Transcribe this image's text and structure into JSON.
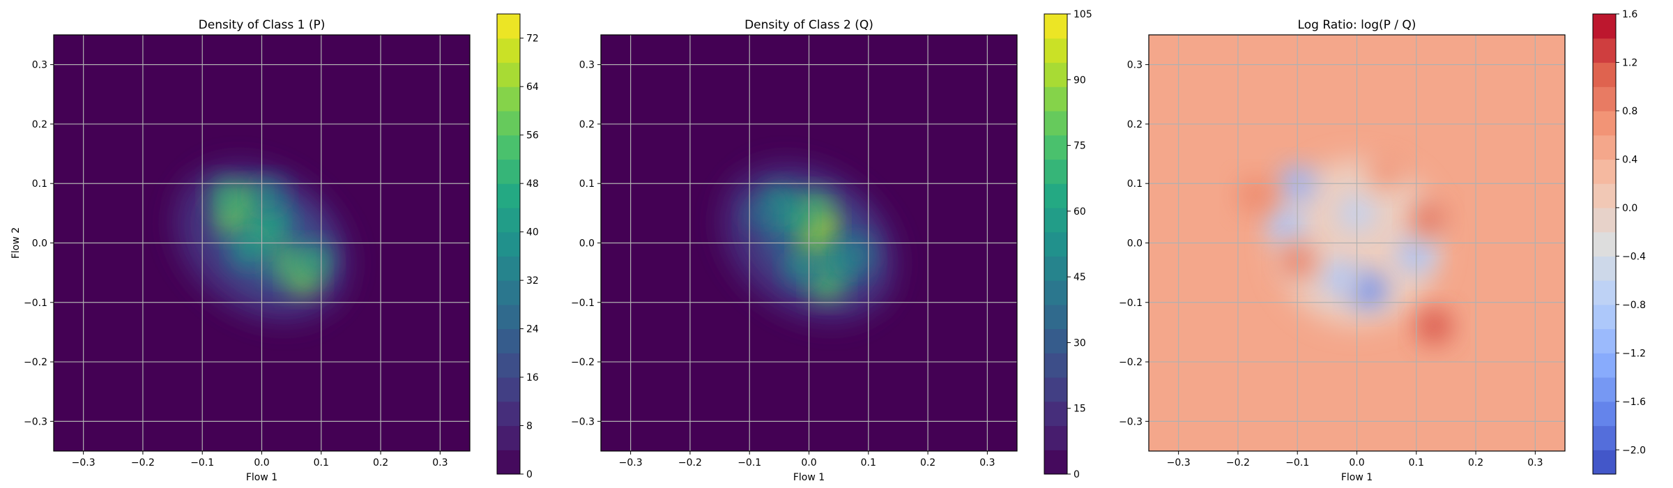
{
  "chart_data": [
    {
      "type": "heatmap",
      "title": "Density of Class 1 (P)",
      "xlabel": "Flow 1",
      "ylabel": "Flow 2",
      "xlim": [
        -0.35,
        0.35
      ],
      "ylim": [
        -0.35,
        0.35
      ],
      "xticks": [
        "−0.3",
        "−0.2",
        "−0.1",
        "0.0",
        "0.1",
        "0.2",
        "0.3"
      ],
      "yticks": [
        "0.3",
        "0.2",
        "0.1",
        "0.0",
        "−0.1",
        "−0.2",
        "−0.3"
      ],
      "grid": true,
      "colormap": "viridis",
      "colorbar": {
        "min": 0,
        "max": 76,
        "ticks": [
          "0",
          "8",
          "16",
          "24",
          "32",
          "40",
          "48",
          "56",
          "64",
          "72"
        ]
      },
      "blobs": [
        {
          "x": -0.05,
          "y": 0.04,
          "value": 60
        },
        {
          "x": -0.03,
          "y": 0.07,
          "value": 58
        },
        {
          "x": -0.06,
          "y": 0.08,
          "value": 50
        },
        {
          "x": 0.0,
          "y": 0.02,
          "value": 52
        },
        {
          "x": 0.02,
          "y": 0.03,
          "value": 45
        },
        {
          "x": 0.07,
          "y": -0.06,
          "value": 62
        },
        {
          "x": 0.04,
          "y": -0.03,
          "value": 55
        },
        {
          "x": 0.09,
          "y": -0.03,
          "value": 48
        },
        {
          "x": -0.02,
          "y": -0.01,
          "value": 44
        },
        {
          "x": 0.01,
          "y": 0.08,
          "value": 40
        }
      ]
    },
    {
      "type": "heatmap",
      "title": "Density of Class 2 (Q)",
      "xlabel": "Flow 1",
      "ylabel": "",
      "xlim": [
        -0.35,
        0.35
      ],
      "ylim": [
        -0.35,
        0.35
      ],
      "xticks": [
        "−0.3",
        "−0.2",
        "−0.1",
        "0.0",
        "0.1",
        "0.2",
        "0.3"
      ],
      "yticks": [
        "0.3",
        "0.2",
        "0.1",
        "0.0",
        "−0.1",
        "−0.2",
        "−0.3"
      ],
      "grid": true,
      "colormap": "viridis",
      "colorbar": {
        "min": 0,
        "max": 105,
        "ticks": [
          "0",
          "15",
          "30",
          "45",
          "60",
          "75",
          "90",
          "105"
        ]
      },
      "blobs": [
        {
          "x": 0.02,
          "y": 0.03,
          "value": 95
        },
        {
          "x": 0.01,
          "y": 0.0,
          "value": 88
        },
        {
          "x": 0.03,
          "y": -0.07,
          "value": 80
        },
        {
          "x": 0.01,
          "y": 0.06,
          "value": 75
        },
        {
          "x": -0.03,
          "y": 0.04,
          "value": 65
        },
        {
          "x": -0.05,
          "y": 0.07,
          "value": 60
        },
        {
          "x": 0.05,
          "y": -0.03,
          "value": 62
        },
        {
          "x": -0.01,
          "y": -0.04,
          "value": 55
        },
        {
          "x": 0.08,
          "y": -0.02,
          "value": 45
        },
        {
          "x": -0.08,
          "y": 0.05,
          "value": 40
        }
      ]
    },
    {
      "type": "heatmap",
      "title": "Log Ratio: log(P / Q)",
      "xlabel": "Flow 1",
      "ylabel": "",
      "xlim": [
        -0.35,
        0.35
      ],
      "ylim": [
        -0.35,
        0.35
      ],
      "xticks": [
        "−0.3",
        "−0.2",
        "−0.1",
        "0.0",
        "0.1",
        "0.2",
        "0.3"
      ],
      "yticks": [
        "0.3",
        "0.2",
        "0.1",
        "0.0",
        "−0.1",
        "−0.2",
        "−0.3"
      ],
      "grid": true,
      "colormap": "coolwarm",
      "colorbar": {
        "min": -2.2,
        "max": 1.6,
        "ticks": [
          "−2.0",
          "−1.6",
          "−1.2",
          "−0.8",
          "−0.4",
          "0.0",
          "0.4",
          "0.8",
          "1.2",
          "1.6"
        ]
      },
      "background_value": 0.5,
      "blobs": [
        {
          "x": 0.02,
          "y": -0.08,
          "value": -1.6
        },
        {
          "x": -0.1,
          "y": 0.1,
          "value": -1.2
        },
        {
          "x": -0.12,
          "y": 0.03,
          "value": -1.0
        },
        {
          "x": 0.1,
          "y": -0.02,
          "value": -1.0
        },
        {
          "x": -0.03,
          "y": -0.06,
          "value": -0.9
        },
        {
          "x": 0.0,
          "y": 0.05,
          "value": -0.7
        },
        {
          "x": 0.13,
          "y": -0.14,
          "value": 1.2
        },
        {
          "x": 0.12,
          "y": 0.04,
          "value": 1.0
        },
        {
          "x": -0.1,
          "y": -0.03,
          "value": 0.9
        },
        {
          "x": -0.17,
          "y": 0.08,
          "value": 0.8
        },
        {
          "x": 0.05,
          "y": 0.12,
          "value": 0.7
        }
      ]
    }
  ]
}
